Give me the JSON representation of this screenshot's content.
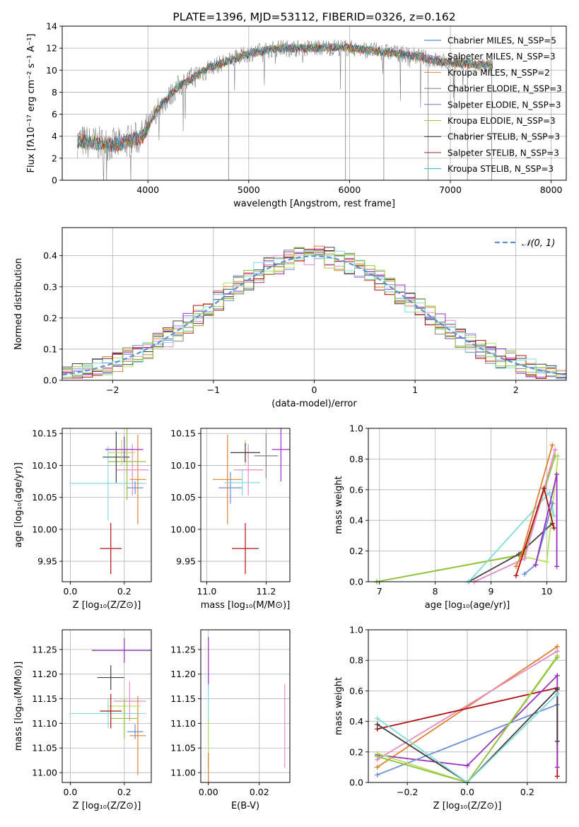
{
  "colors": {
    "chab_miles": "#1f77b4",
    "salp_miles": "#e377c2",
    "krou_miles": "#ff7f0e",
    "chab_elodie": "#7f7f7f",
    "salp_elodie": "#9467bd",
    "krou_elodie": "#bcbd22",
    "chab_stelib": "#333333",
    "salp_stelib": "#b22222",
    "krou_stelib": "#17becf",
    "gauss": "#5b8fd6",
    "blue": "#6b8fd9",
    "pink": "#e88ac5",
    "orange": "#e08030",
    "gray": "#808080",
    "purple": "#9b30c0",
    "lime": "#b8e060",
    "olive": "#90c040",
    "dark": "#404040",
    "red": "#b01010",
    "cyan": "#80dcdc"
  },
  "chart_data": [
    {
      "id": "spectrum",
      "type": "line",
      "title": "PLATE=1396, MJD=53112, FIBERID=0326, z=0.162",
      "xlabel": "wavelength [Angstrom, rest frame]",
      "ylabel": "Flux [fλ10⁻¹⁷ erg cm⁻² s⁻¹ A⁻¹]",
      "xlim": [
        3150,
        8150
      ],
      "ylim": [
        0,
        14
      ],
      "xticks": [
        4000,
        5000,
        6000,
        7000,
        8000
      ],
      "yticks": [
        0,
        2,
        4,
        6,
        8,
        10,
        12,
        14
      ],
      "legend_position": "top-right",
      "legend": [
        {
          "label": "Chabrier MILES, N_SSP=5",
          "color": "chab_miles"
        },
        {
          "label": "Salpeter MILES, N_SSP=3",
          "color": "salp_miles"
        },
        {
          "label": "Kroupa MILES, N_SSP=2",
          "color": "krou_miles"
        },
        {
          "label": "Chabrier ELODIE, N_SSP=3",
          "color": "chab_elodie"
        },
        {
          "label": "Salpeter ELODIE, N_SSP=3",
          "color": "salp_elodie"
        },
        {
          "label": "Kroupa ELODIE, N_SSP=3",
          "color": "krou_elodie"
        },
        {
          "label": "Chabrier STELIB, N_SSP=3",
          "color": "chab_stelib"
        },
        {
          "label": "Salpeter STELIB, N_SSP=3",
          "color": "salp_stelib"
        },
        {
          "label": "Kroupa STELIB, N_SSP=3",
          "color": "krou_stelib"
        }
      ],
      "continuum": {
        "x": [
          3300,
          3450,
          3700,
          3950,
          4100,
          4300,
          4600,
          5000,
          5300,
          5600,
          5900,
          6200,
          6500,
          6700,
          6900,
          7100,
          7300,
          7400
        ],
        "y": [
          3.6,
          3.4,
          3.2,
          4.0,
          6.5,
          8.5,
          10.2,
          11.5,
          12.0,
          12.0,
          12.1,
          11.8,
          11.5,
          11.2,
          10.8,
          10.6,
          10.5,
          10.4
        ]
      }
    },
    {
      "id": "residuals",
      "type": "line",
      "xlabel": "(data-model)/error",
      "ylabel": "Normed distribution",
      "xlim": [
        -2.5,
        2.5
      ],
      "ylim": [
        0,
        0.49
      ],
      "xticks": [
        -2,
        -1,
        0,
        1,
        2
      ],
      "xticklabels": [
        "−2",
        "−1",
        "0",
        "1",
        "2"
      ],
      "yticks": [
        0,
        0.1,
        0.2,
        0.3,
        0.4
      ],
      "yticklabels": [
        "0.0",
        "0.1",
        "0.2",
        "0.3",
        "0.4"
      ],
      "legend_position": "top-right",
      "legend": [
        {
          "label": "𝒩(0, 1)",
          "color": "gauss"
        }
      ],
      "gaussian": {
        "mean": 0,
        "sigma": 1
      }
    },
    {
      "id": "age_vs_Z",
      "type": "scatter",
      "xlabel": "Z [log₁₀(Z/Z⊙)]",
      "ylabel": "age  [log₁₀(age/yr)]",
      "xlim": [
        -0.03,
        0.3
      ],
      "ylim": [
        9.918,
        10.158
      ],
      "xticks": [
        0.0,
        0.2
      ],
      "xticklabels": [
        "0.0",
        "0.2"
      ],
      "yticks": [
        9.95,
        10.0,
        10.05,
        10.1,
        10.15
      ],
      "yticklabels": [
        "9.95",
        "10.00",
        "10.05",
        "10.10",
        "10.15"
      ],
      "points": [
        {
          "x": 0.14,
          "y": 10.072,
          "xerr": 0.14,
          "yerr": 0.058,
          "color": "cyan"
        },
        {
          "x": 0.24,
          "y": 10.065,
          "xerr": 0.03,
          "yerr": 0.01,
          "color": "blue"
        },
        {
          "x": 0.25,
          "y": 10.078,
          "xerr": 0.03,
          "yerr": 0.07,
          "color": "orange"
        },
        {
          "x": 0.23,
          "y": 10.093,
          "xerr": 0.06,
          "yerr": 0.04,
          "color": "pink"
        },
        {
          "x": 0.21,
          "y": 10.106,
          "xerr": 0.07,
          "yerr": 0.06,
          "color": "olive"
        },
        {
          "x": 0.17,
          "y": 10.113,
          "xerr": 0.05,
          "yerr": 0.04,
          "color": "dark"
        },
        {
          "x": 0.19,
          "y": 10.12,
          "xerr": 0.05,
          "yerr": 0.02,
          "color": "lime"
        },
        {
          "x": 0.2,
          "y": 10.125,
          "xerr": 0.07,
          "yerr": 0.02,
          "color": "purple"
        },
        {
          "x": 0.15,
          "y": 9.97,
          "xerr": 0.04,
          "yerr": 0.04,
          "color": "red"
        }
      ]
    },
    {
      "id": "age_vs_mass",
      "type": "scatter",
      "xlabel": "mass [log₁₀(M/M⊙)]",
      "ylabel": "",
      "xlim": [
        10.98,
        11.28
      ],
      "ylim": [
        9.918,
        10.158
      ],
      "xticks": [
        11.0,
        11.2
      ],
      "xticklabels": [
        "11.0",
        "11.2"
      ],
      "yticks": [
        9.95,
        10.0,
        10.05,
        10.1,
        10.15
      ],
      "yticklabels": [
        "9.95",
        "10.00",
        "10.05",
        "10.10",
        "10.15"
      ],
      "points": [
        {
          "x": 11.08,
          "y": 10.065,
          "xerr": 0.04,
          "yerr": 0.025,
          "color": "blue"
        },
        {
          "x": 11.07,
          "y": 10.078,
          "xerr": 0.05,
          "yerr": 0.07,
          "color": "orange"
        },
        {
          "x": 11.14,
          "y": 10.093,
          "xerr": 0.05,
          "yerr": 0.04,
          "color": "pink"
        },
        {
          "x": 11.13,
          "y": 10.12,
          "xerr": 0.05,
          "yerr": 0.02,
          "color": "lime"
        },
        {
          "x": 11.13,
          "y": 10.12,
          "xerr": 0.05,
          "yerr": 0.015,
          "color": "dark"
        },
        {
          "x": 11.2,
          "y": 10.115,
          "xerr": 0.04,
          "yerr": 0.035,
          "color": "gray"
        },
        {
          "x": 11.25,
          "y": 10.125,
          "xerr": 0.03,
          "yerr": 0.05,
          "color": "purple"
        },
        {
          "x": 11.12,
          "y": 10.073,
          "xerr": 0.06,
          "yerr": 0.02,
          "color": "cyan"
        },
        {
          "x": 11.13,
          "y": 9.97,
          "xerr": 0.045,
          "yerr": 0.04,
          "color": "red"
        }
      ]
    },
    {
      "id": "weight_vs_age",
      "type": "line",
      "xlabel": "age  [log₁₀(age/yr)]",
      "ylabel": "mass weight",
      "xlim": [
        6.8,
        10.35
      ],
      "ylim": [
        0,
        1.0
      ],
      "xticks": [
        7,
        8,
        9,
        10
      ],
      "xticklabels": [
        "7",
        "8",
        "9",
        "10"
      ],
      "yticks": [
        0,
        0.2,
        0.4,
        0.6,
        0.8,
        1.0
      ],
      "yticklabels": [
        "0.0",
        "0.2",
        "0.4",
        "0.6",
        "0.8",
        "1.0"
      ],
      "series": [
        {
          "color": "lime",
          "x": [
            6.95,
            9.5,
            10.0,
            10.2
          ],
          "y": [
            0.0,
            0.17,
            0.13,
            0.82
          ]
        },
        {
          "color": "olive",
          "x": [
            6.95,
            9.6,
            10.15
          ],
          "y": [
            0.0,
            0.18,
            0.82
          ]
        },
        {
          "color": "dark",
          "x": [
            8.6,
            9.5,
            10.1
          ],
          "y": [
            0.0,
            0.18,
            0.38
          ]
        },
        {
          "color": "cyan",
          "x": [
            8.6,
            10.05,
            10.13
          ],
          "y": [
            0.0,
            0.58,
            0.43
          ]
        },
        {
          "color": "pink",
          "x": [
            8.7,
            9.6,
            10.15
          ],
          "y": [
            0.0,
            0.15,
            0.86
          ]
        },
        {
          "color": "orange",
          "x": [
            9.45,
            9.55,
            10.1
          ],
          "y": [
            0.1,
            0.18,
            0.89
          ]
        },
        {
          "color": "blue",
          "x": [
            9.6,
            9.8,
            10.1
          ],
          "y": [
            0.05,
            0.11,
            0.51
          ]
        },
        {
          "color": "red",
          "x": [
            9.45,
            9.95,
            10.13
          ],
          "y": [
            0.04,
            0.61,
            0.35
          ]
        },
        {
          "color": "purple",
          "x": [
            9.8,
            10.18,
            10.18
          ],
          "y": [
            0.11,
            0.7,
            0.1
          ]
        }
      ]
    },
    {
      "id": "mass_vs_Z",
      "type": "scatter",
      "xlabel": "Z [log₁₀(Z/Z⊙)]",
      "ylabel": "mass [log₁₀(M/M⊙)]",
      "xlim": [
        -0.03,
        0.3
      ],
      "ylim": [
        10.98,
        11.29
      ],
      "xticks": [
        0.0,
        0.2
      ],
      "xticklabels": [
        "0.0",
        "0.2"
      ],
      "yticks": [
        11.0,
        11.05,
        11.1,
        11.15,
        11.2,
        11.25
      ],
      "yticklabels": [
        "11.00",
        "11.05",
        "11.10",
        "11.15",
        "11.20",
        "11.25"
      ],
      "points": [
        {
          "x": 0.2,
          "y": 11.248,
          "xerr": 0.12,
          "yerr": 0.025,
          "color": "purple"
        },
        {
          "x": 0.15,
          "y": 11.193,
          "xerr": 0.05,
          "yerr": 0.025,
          "color": "dark"
        },
        {
          "x": 0.14,
          "y": 11.12,
          "xerr": 0.14,
          "yerr": 0.03,
          "color": "cyan"
        },
        {
          "x": 0.22,
          "y": 11.145,
          "xerr": 0.06,
          "yerr": 0.04,
          "color": "pink"
        },
        {
          "x": 0.24,
          "y": 11.083,
          "xerr": 0.03,
          "yerr": 0.015,
          "color": "blue"
        },
        {
          "x": 0.25,
          "y": 11.075,
          "xerr": 0.03,
          "yerr": 0.08,
          "color": "orange"
        },
        {
          "x": 0.2,
          "y": 11.135,
          "xerr": 0.06,
          "yerr": 0.02,
          "color": "lime"
        },
        {
          "x": 0.2,
          "y": 11.11,
          "xerr": 0.05,
          "yerr": 0.04,
          "color": "olive"
        },
        {
          "x": 0.15,
          "y": 11.125,
          "xerr": 0.04,
          "yerr": 0.035,
          "color": "red"
        }
      ]
    },
    {
      "id": "mass_vs_EBV",
      "type": "scatter",
      "xlabel": "E(B-V)",
      "ylabel": "",
      "xlim": [
        -0.003,
        0.032
      ],
      "ylim": [
        10.98,
        11.29
      ],
      "xticks": [
        0.0,
        0.02
      ],
      "xticklabels": [
        "0.00",
        "0.02"
      ],
      "yticks": [
        11.0,
        11.05,
        11.1,
        11.15,
        11.2,
        11.25
      ],
      "yticklabels": [
        "11.00",
        "11.05",
        "11.10",
        "11.15",
        "11.20",
        "11.25"
      ],
      "points": [
        {
          "x": 0.0,
          "y": 11.225,
          "xerr": 0,
          "yerr": 0.05,
          "color": "purple"
        },
        {
          "x": 0.0,
          "y": 11.14,
          "xerr": 0,
          "yerr": 0.04,
          "color": "cyan"
        },
        {
          "x": 0.0,
          "y": 11.06,
          "xerr": 0,
          "yerr": 0.05,
          "color": "lime"
        },
        {
          "x": 0.0,
          "y": 11.01,
          "xerr": 0,
          "yerr": 0.03,
          "color": "orange"
        },
        {
          "x": 0.03,
          "y": 11.095,
          "xerr": 0,
          "yerr": 0.085,
          "color": "pink"
        }
      ]
    },
    {
      "id": "weight_vs_Z",
      "type": "line",
      "xlabel": "Z [log₁₀(Z/Z⊙)]",
      "ylabel": "mass weight",
      "xlim": [
        -0.33,
        0.33
      ],
      "ylim": [
        0,
        1.0
      ],
      "xticks": [
        -0.2,
        0.0,
        0.2
      ],
      "xticklabels": [
        "−0.2",
        "0.0",
        "0.2"
      ],
      "yticks": [
        0,
        0.2,
        0.4,
        0.6,
        0.8,
        1.0
      ],
      "yticklabels": [
        "0.0",
        "0.2",
        "0.4",
        "0.6",
        "0.8",
        "1.0"
      ],
      "series": [
        {
          "color": "orange",
          "x": [
            -0.3,
            0.3
          ],
          "y": [
            0.1,
            0.89
          ]
        },
        {
          "color": "pink",
          "x": [
            -0.3,
            0.3
          ],
          "y": [
            0.15,
            0.86
          ]
        },
        {
          "color": "red",
          "x": [
            -0.3,
            0.3,
            0.3
          ],
          "y": [
            0.35,
            0.62,
            0.04
          ]
        },
        {
          "color": "purple",
          "x": [
            -0.3,
            0.0,
            0.3,
            0.3
          ],
          "y": [
            0.18,
            0.11,
            0.7,
            0.1
          ]
        },
        {
          "color": "blue",
          "x": [
            -0.3,
            0.3
          ],
          "y": [
            0.05,
            0.51
          ]
        },
        {
          "color": "dark",
          "x": [
            -0.3,
            0.0,
            0.3,
            0.3
          ],
          "y": [
            0.38,
            0.0,
            0.61,
            0.27
          ]
        },
        {
          "color": "lime",
          "x": [
            -0.3,
            0.0,
            0.3
          ],
          "y": [
            0.19,
            0.0,
            0.83
          ]
        },
        {
          "color": "olive",
          "x": [
            -0.3,
            0.0,
            0.3
          ],
          "y": [
            0.17,
            0.0,
            0.82
          ]
        },
        {
          "color": "cyan",
          "x": [
            -0.3,
            0.0,
            0.3
          ],
          "y": [
            0.42,
            0.0,
            0.58
          ]
        }
      ]
    }
  ]
}
